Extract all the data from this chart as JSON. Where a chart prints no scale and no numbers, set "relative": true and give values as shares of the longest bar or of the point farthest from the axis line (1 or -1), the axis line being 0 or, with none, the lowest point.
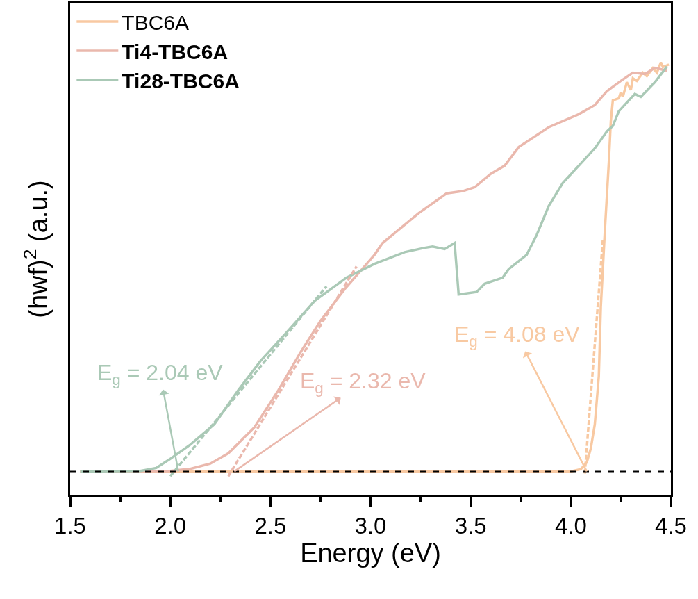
{
  "chart_data": {
    "type": "line",
    "relative": true,
    "xlabel": "Energy (eV)",
    "ylabel": "(hwf)$^{2}$ (a.u.)",
    "xlim": [
      1.5,
      4.5
    ],
    "xticks": [
      1.5,
      {
        "value": 2,
        "label": "2.0"
      },
      2.5,
      {
        "value": 3,
        "label": "3.0"
      },
      3.5,
      {
        "value": 4,
        "label": "4.0"
      },
      4.5
    ],
    "legend": "top left",
    "marker": "none",
    "series": [
      {
        "name": "TBC6A",
        "color": "#f8c9a2",
        "x": [
          1.55,
          4.0,
          4.05,
          4.08,
          4.1,
          4.12,
          4.14,
          4.15,
          4.17,
          4.19,
          4.2,
          4.21,
          4.24,
          4.25,
          4.26,
          4.28,
          4.3,
          4.31,
          4.33,
          4.36,
          4.38,
          4.41,
          4.43,
          4.45,
          4.46,
          4.49
        ],
        "values": [
          0.054,
          0.054,
          0.059,
          0.075,
          0.107,
          0.163,
          0.274,
          0.434,
          0.609,
          0.769,
          0.864,
          0.912,
          0.917,
          0.931,
          0.92,
          0.954,
          0.936,
          0.963,
          0.957,
          0.976,
          0.968,
          0.987,
          0.976,
          1.0,
          0.989,
          0.995
        ]
      },
      {
        "name": "Ti4-TBC6A",
        "color": "#eab8ad",
        "x": [
          1.55,
          2.0,
          2.1,
          2.2,
          2.29,
          2.42,
          2.54,
          2.65,
          2.75,
          2.87,
          3.02,
          3.06,
          3.24,
          3.38,
          3.46,
          3.52,
          3.6,
          3.67,
          3.74,
          3.89,
          4.04,
          4.12,
          4.18,
          4.25,
          4.31,
          4.37,
          4.42,
          4.48
        ],
        "values": [
          0.054,
          0.055,
          0.06,
          0.072,
          0.096,
          0.156,
          0.242,
          0.329,
          0.402,
          0.475,
          0.555,
          0.582,
          0.651,
          0.697,
          0.702,
          0.711,
          0.742,
          0.761,
          0.804,
          0.85,
          0.88,
          0.901,
          0.933,
          0.957,
          0.976,
          0.973,
          0.987,
          0.981
        ]
      },
      {
        "name": "Ti28-TBC6A",
        "color": "#aac9b6",
        "x": [
          1.55,
          1.85,
          1.93,
          2.0,
          2.1,
          2.22,
          2.34,
          2.45,
          2.58,
          2.72,
          2.88,
          3.02,
          3.17,
          3.27,
          3.31,
          3.37,
          3.42,
          3.44,
          3.53,
          3.57,
          3.66,
          3.69,
          3.78,
          3.83,
          3.89,
          3.96,
          4.04,
          4.12,
          4.18,
          4.21,
          4.24,
          4.32,
          4.35,
          4.42,
          4.48
        ],
        "values": [
          0.054,
          0.055,
          0.062,
          0.083,
          0.116,
          0.163,
          0.242,
          0.309,
          0.375,
          0.448,
          0.502,
          0.534,
          0.561,
          0.571,
          0.574,
          0.568,
          0.582,
          0.463,
          0.469,
          0.488,
          0.502,
          0.522,
          0.555,
          0.601,
          0.668,
          0.721,
          0.761,
          0.801,
          0.84,
          0.853,
          0.887,
          0.927,
          0.92,
          0.954,
          0.99
        ]
      },
      {
        "color": "#f8c9a2",
        "line_style": "dashed",
        "x": [
          4.07,
          4.16
        ],
        "values": [
          0.049,
          0.589
        ]
      },
      {
        "color": "#eab8ad",
        "line_style": "dashed",
        "x": [
          2.29,
          2.93
        ],
        "values": [
          0.043,
          0.528
        ]
      },
      {
        "color": "#aac9b6",
        "line_style": "dashed",
        "x": [
          2.0,
          2.78
        ],
        "values": [
          0.043,
          0.482
        ]
      }
    ],
    "ref_lines": [
      {
        "axis": "y",
        "value": 0.054,
        "color": "#000000",
        "line_style": "dashed"
      }
    ],
    "annotations": [
      {
        "text": "E$_{g}$ = 2.04 eV",
        "x": 2.04,
        "y": 0.054
      },
      {
        "text": "E$_{g}$ = 2.32 eV",
        "x": 2.32,
        "y": 0.054
      },
      {
        "text": "E$_{g}$ = 4.08 eV",
        "x": 4.08,
        "y": 0.054
      }
    ]
  }
}
